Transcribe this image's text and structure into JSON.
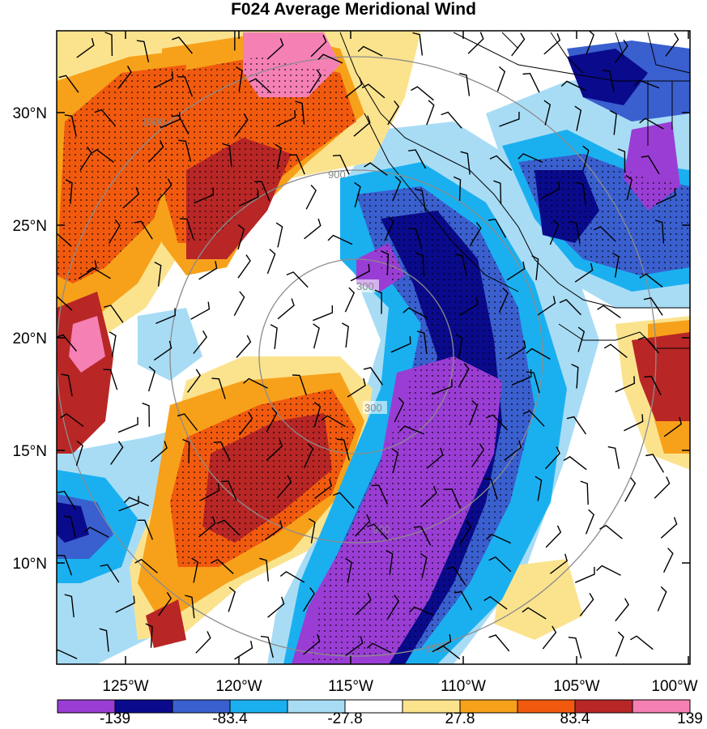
{
  "title": "F024 Average Meridional Wind",
  "lat_labels": [
    "30°N",
    "25°N",
    "20°N",
    "15°N",
    "10°N"
  ],
  "lon_labels": [
    "125°W",
    "120°W",
    "115°W",
    "110°W",
    "105°W",
    "100°W"
  ],
  "colorbar": {
    "colors": [
      "#9a3dd4",
      "#0a0a8c",
      "#3a5fcf",
      "#1ab0f0",
      "#a8dcf5",
      "#ffffff",
      "#fbe38e",
      "#f7a11a",
      "#f15a0e",
      "#b82626",
      "#f580b4"
    ],
    "labels": [
      "-139",
      "-83.4",
      "-27.8",
      "27.8",
      "83.4",
      "139"
    ]
  },
  "range_rings": [
    "300",
    "900",
    "1500"
  ],
  "colors": {
    "land_line": "#000000",
    "ring": "#8c8c8c",
    "barb": "#000000"
  }
}
